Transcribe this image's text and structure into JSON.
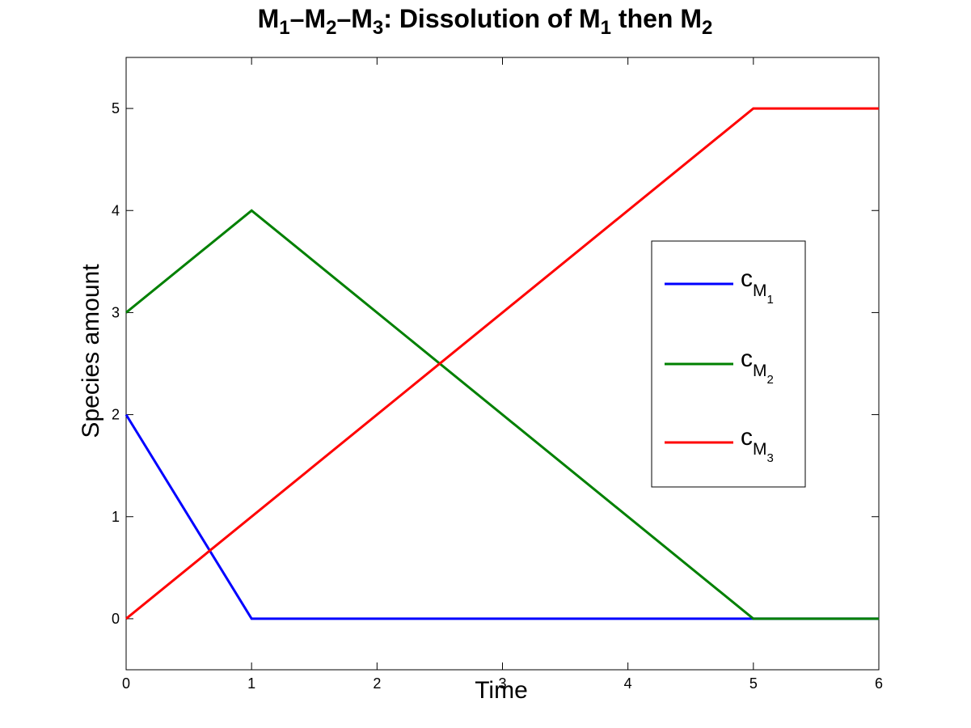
{
  "chart_data": {
    "type": "line",
    "title": {
      "parts": [
        {
          "text": "M",
          "sub": "1"
        },
        {
          "text": "–M",
          "sub": "2"
        },
        {
          "text": "–M",
          "sub": "3"
        },
        {
          "text": ": Dissolution of M",
          "sub": "1"
        },
        {
          "text": " then M",
          "sub": "2"
        }
      ]
    },
    "xlabel": "Time",
    "ylabel": "Species amount",
    "xlim": [
      0,
      6
    ],
    "ylim": [
      -0.5,
      5.5
    ],
    "xticks": [
      "0",
      "1",
      "2",
      "3",
      "4",
      "5",
      "6"
    ],
    "yticks": [
      "0",
      "1",
      "2",
      "3",
      "4",
      "5"
    ],
    "grid": false,
    "legend_position": "right-middle",
    "series": [
      {
        "name": "c",
        "sub": "M",
        "subsub": "1",
        "color": "#0000ff",
        "x": [
          0,
          1,
          5,
          6
        ],
        "y": [
          2,
          0,
          0,
          0
        ]
      },
      {
        "name": "c",
        "sub": "M",
        "subsub": "2",
        "color": "#008000",
        "x": [
          0,
          1,
          5,
          6
        ],
        "y": [
          3,
          4,
          0,
          0
        ]
      },
      {
        "name": "c",
        "sub": "M",
        "subsub": "3",
        "color": "#ff0000",
        "x": [
          0,
          5,
          6
        ],
        "y": [
          0,
          5,
          5
        ]
      }
    ]
  }
}
